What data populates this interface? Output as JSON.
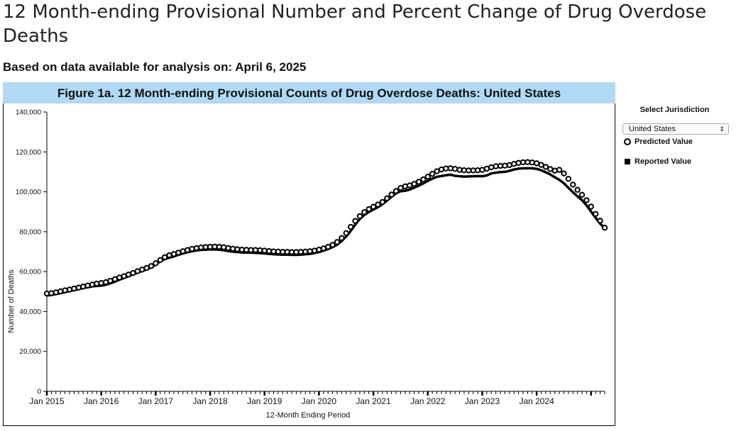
{
  "page": {
    "title": "12 Month-ending Provisional Number and Percent Change of Drug Overdose Deaths",
    "subtitle": "Based on data available for analysis on: April 6, 2025"
  },
  "controls": {
    "select_label": "Select Jurisdiction",
    "jurisdiction": "United States"
  },
  "legend": {
    "predicted": "Predicted Value",
    "reported": "Reported Value"
  },
  "chart_data": {
    "type": "line",
    "title": "Figure 1a. 12 Month-ending Provisional Counts of Drug Overdose Deaths: United States",
    "xlabel": "12-Month Ending Period",
    "ylabel": "Number of Deaths",
    "ylim": [
      0,
      140000
    ],
    "yticks": [
      0,
      20000,
      40000,
      60000,
      80000,
      100000,
      120000,
      140000
    ],
    "ytick_labels": [
      "0",
      "20,000",
      "40,000",
      "60,000",
      "80,000",
      "100,000",
      "120,000",
      "140,000"
    ],
    "xtick_labels": [
      "Jan 2015",
      "Jan 2016",
      "Jan 2017",
      "Jan 2018",
      "Jan 2019",
      "Jan 2020",
      "Jan 2021",
      "Jan 2022",
      "Jan 2023",
      "Jan 2024"
    ],
    "x_start": "Jan 2015",
    "x_end": "Nov 2024",
    "grid": false,
    "legend_position": "right",
    "colors": {
      "line": "#000000",
      "marker_fill": "#ffffff"
    },
    "series": [
      {
        "name": "Predicted Value",
        "marker": "open-circle",
        "values": [
          49000,
          49200,
          49600,
          50100,
          50600,
          51000,
          51500,
          52000,
          52500,
          53000,
          53500,
          54000,
          54300,
          54700,
          55400,
          56200,
          57000,
          57700,
          58500,
          59300,
          60200,
          61000,
          61800,
          62800,
          64200,
          65800,
          67200,
          68200,
          68800,
          69500,
          70200,
          70800,
          71400,
          71800,
          72100,
          72300,
          72400,
          72500,
          72400,
          72200,
          71800,
          71500,
          71200,
          71000,
          70900,
          70800,
          70800,
          70700,
          70500,
          70300,
          70100,
          70000,
          69900,
          69900,
          69800,
          69800,
          69900,
          70000,
          70200,
          70500,
          71000,
          71600,
          72400,
          73400,
          74800,
          76800,
          79300,
          82400,
          85400,
          87800,
          89800,
          91300,
          92500,
          93600,
          94900,
          96700,
          98600,
          100400,
          101900,
          102700,
          103200,
          104000,
          105000,
          106200,
          107600,
          109000,
          110300,
          111200,
          111700,
          111800,
          111500,
          111000,
          110800,
          110700,
          110700,
          110800,
          111000,
          111600,
          112300,
          112800,
          113000,
          113100,
          113400,
          114000,
          114500,
          114800,
          114900,
          114700,
          114300,
          113500,
          112500,
          111400,
          110600,
          111000,
          109200,
          106500,
          103600,
          101000,
          98500,
          95800,
          92600,
          88900,
          85500,
          82000
        ]
      },
      {
        "name": "Reported Value",
        "marker": "line",
        "values": [
          48000,
          48300,
          48700,
          49200,
          49700,
          50200,
          50700,
          51200,
          51800,
          52200,
          52600,
          52800,
          53000,
          53400,
          54100,
          55000,
          55900,
          56800,
          57700,
          58600,
          59500,
          60300,
          61100,
          62100,
          63500,
          65100,
          66300,
          67000,
          67600,
          68400,
          69100,
          69700,
          70200,
          70600,
          70900,
          71000,
          71100,
          71100,
          71000,
          70700,
          70300,
          70000,
          69800,
          69600,
          69500,
          69500,
          69400,
          69300,
          69100,
          68900,
          68700,
          68600,
          68500,
          68500,
          68400,
          68400,
          68500,
          68700,
          68900,
          69300,
          69800,
          70500,
          71300,
          72300,
          73500,
          75300,
          77600,
          80400,
          83600,
          86400,
          88400,
          89900,
          91100,
          92300,
          93800,
          95600,
          97500,
          99300,
          100300,
          100500,
          101100,
          102100,
          103100,
          104200,
          105500,
          106600,
          107500,
          107900,
          108300,
          108600,
          108000,
          107800,
          107600,
          107700,
          107800,
          107900,
          107800,
          108200,
          109200,
          109600,
          109900,
          110000,
          110500,
          111200,
          111600,
          111800,
          111800,
          111800,
          111500,
          110800,
          109800,
          108700,
          107300,
          106000,
          104300,
          102000,
          99800,
          97700,
          95800,
          93200,
          90100,
          87000,
          84000,
          81900
        ]
      }
    ]
  }
}
